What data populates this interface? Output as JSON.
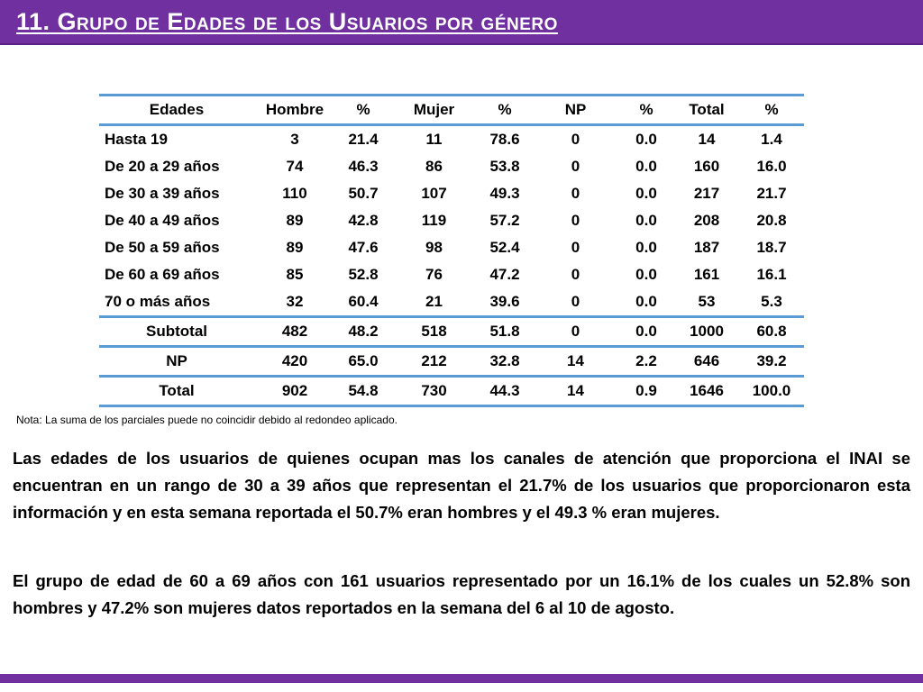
{
  "header": {
    "title": "11. Grupo de  Edades de los Usuarios por género",
    "bar_color": "#7030a0"
  },
  "table": {
    "columns": [
      "Edades",
      "Hombre",
      "%",
      "Mujer",
      "%",
      "NP",
      "%",
      "Total",
      "%"
    ],
    "rows": [
      [
        "Hasta 19",
        "3",
        "21.4",
        "11",
        "78.6",
        "0",
        "0.0",
        "14",
        "1.4"
      ],
      [
        "De 20 a 29 años",
        "74",
        "46.3",
        "86",
        "53.8",
        "0",
        "0.0",
        "160",
        "16.0"
      ],
      [
        "De 30 a 39 años",
        "110",
        "50.7",
        "107",
        "49.3",
        "0",
        "0.0",
        "217",
        "21.7"
      ],
      [
        "De 40 a 49 años",
        "89",
        "42.8",
        "119",
        "57.2",
        "0",
        "0.0",
        "208",
        "20.8"
      ],
      [
        "De 50 a 59 años",
        "89",
        "47.6",
        "98",
        "52.4",
        "0",
        "0.0",
        "187",
        "18.7"
      ],
      [
        "De 60 a 69 años",
        "85",
        "52.8",
        "76",
        "47.2",
        "0",
        "0.0",
        "161",
        "16.1"
      ],
      [
        "70 o más años",
        "32",
        "60.4",
        "21",
        "39.6",
        "0",
        "0.0",
        "53",
        "5.3"
      ]
    ],
    "summary_rows": [
      [
        "Subtotal",
        "482",
        "48.2",
        "518",
        "51.8",
        "0",
        "0.0",
        "1000",
        "60.8"
      ],
      [
        "NP",
        "420",
        "65.0",
        "212",
        "32.8",
        "14",
        "2.2",
        "646",
        "39.2"
      ],
      [
        "Total",
        "902",
        "54.8",
        "730",
        "44.3",
        "14",
        "0.9",
        "1646",
        "100.0"
      ]
    ],
    "rule_color": "#5b9bd5"
  },
  "note": "Nota: La suma de los parciales puede no coincidir debido al redondeo aplicado.",
  "paragraphs": [
    "Las edades de los usuarios de quienes ocupan mas los canales de atención que proporciona el INAI se encuentran en un rango de 30 a 39 años que representan el 21.7% de los usuarios que proporcionaron esta información y en esta semana reportada el 50.7% eran hombres y el 49.3 % eran mujeres.",
    "El grupo de edad de 60 a 69 años con 161 usuarios representado por un 16.1% de los cuales un 52.8% son hombres y 47.2% son mujeres datos reportados en la semana del 6 al 10 de agosto."
  ]
}
